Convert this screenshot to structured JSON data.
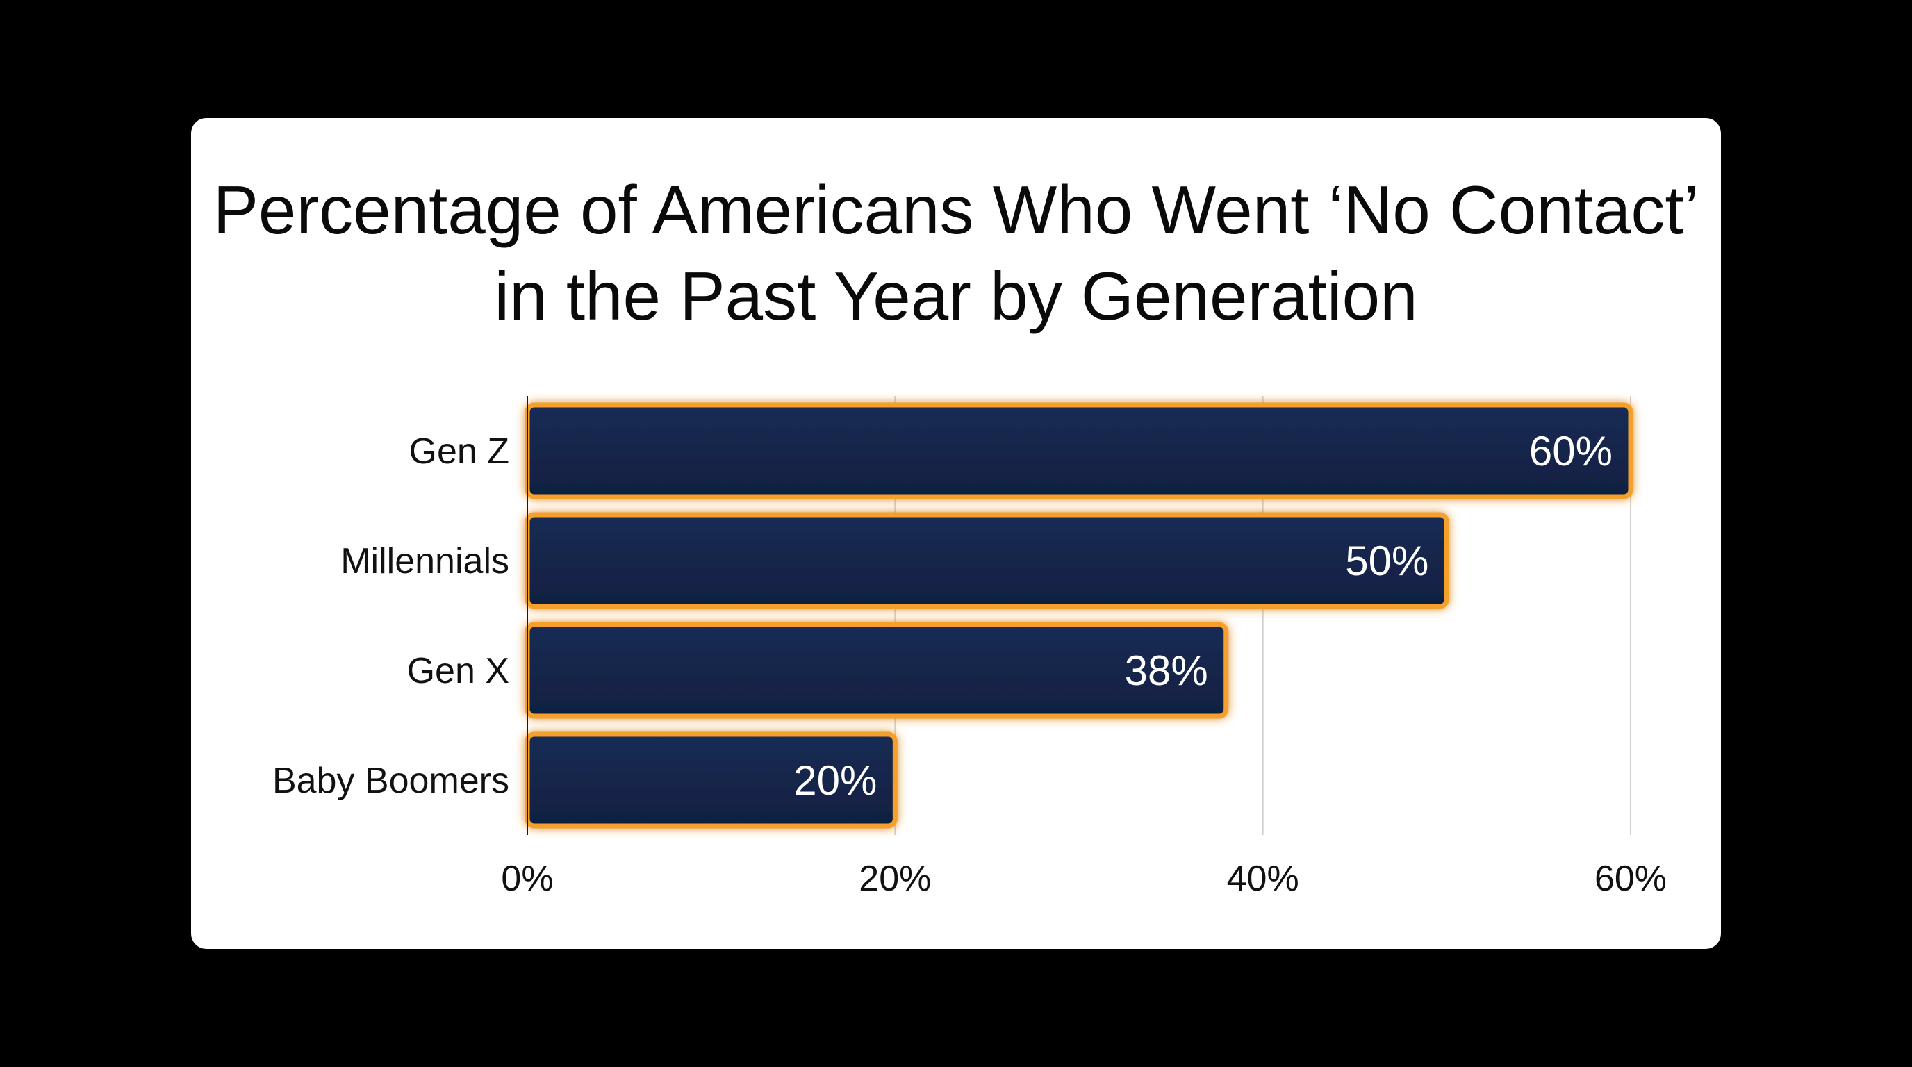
{
  "chart_data": {
    "type": "bar",
    "orientation": "horizontal",
    "title": "Percentage of Americans Who Went ‘No Contact’ in the Past Year by Generation",
    "categories": [
      "Gen Z",
      "Millennials",
      "Gen X",
      "Baby Boomers"
    ],
    "values": [
      60,
      50,
      38,
      20
    ],
    "value_labels": [
      "60%",
      "50%",
      "38%",
      "20%"
    ],
    "x_ticks": [
      0,
      20,
      40,
      60
    ],
    "x_tick_labels": [
      "0%",
      "20%",
      "40%",
      "60%"
    ],
    "xlim": [
      0,
      60
    ],
    "grid": true,
    "colors": {
      "bar_fill": "#14254a",
      "bar_outline": "#f5a02a",
      "grid": "#d0d0d0",
      "background": "#ffffff",
      "page_background": "#000000"
    }
  }
}
